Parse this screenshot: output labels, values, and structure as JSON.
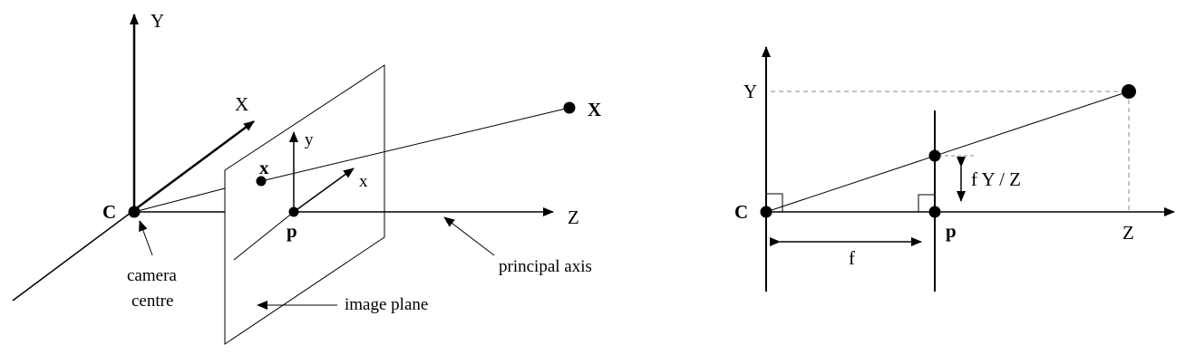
{
  "left": {
    "axes": {
      "Y": "Y",
      "X": "X",
      "Z": "Z",
      "y": "y",
      "x": "x"
    },
    "points": {
      "C": "C",
      "x": "x",
      "p": "p",
      "X": "X"
    },
    "annotations": {
      "camera_centre_line1": "camera",
      "camera_centre_line2": "centre",
      "image_plane": "image plane",
      "principal_axis": "principal axis"
    }
  },
  "right": {
    "axes": {
      "Y": "Y",
      "Z": "Z"
    },
    "points": {
      "C": "C",
      "p": "p"
    },
    "labels": {
      "f": "f",
      "fYZ": "f Y / Z"
    }
  }
}
